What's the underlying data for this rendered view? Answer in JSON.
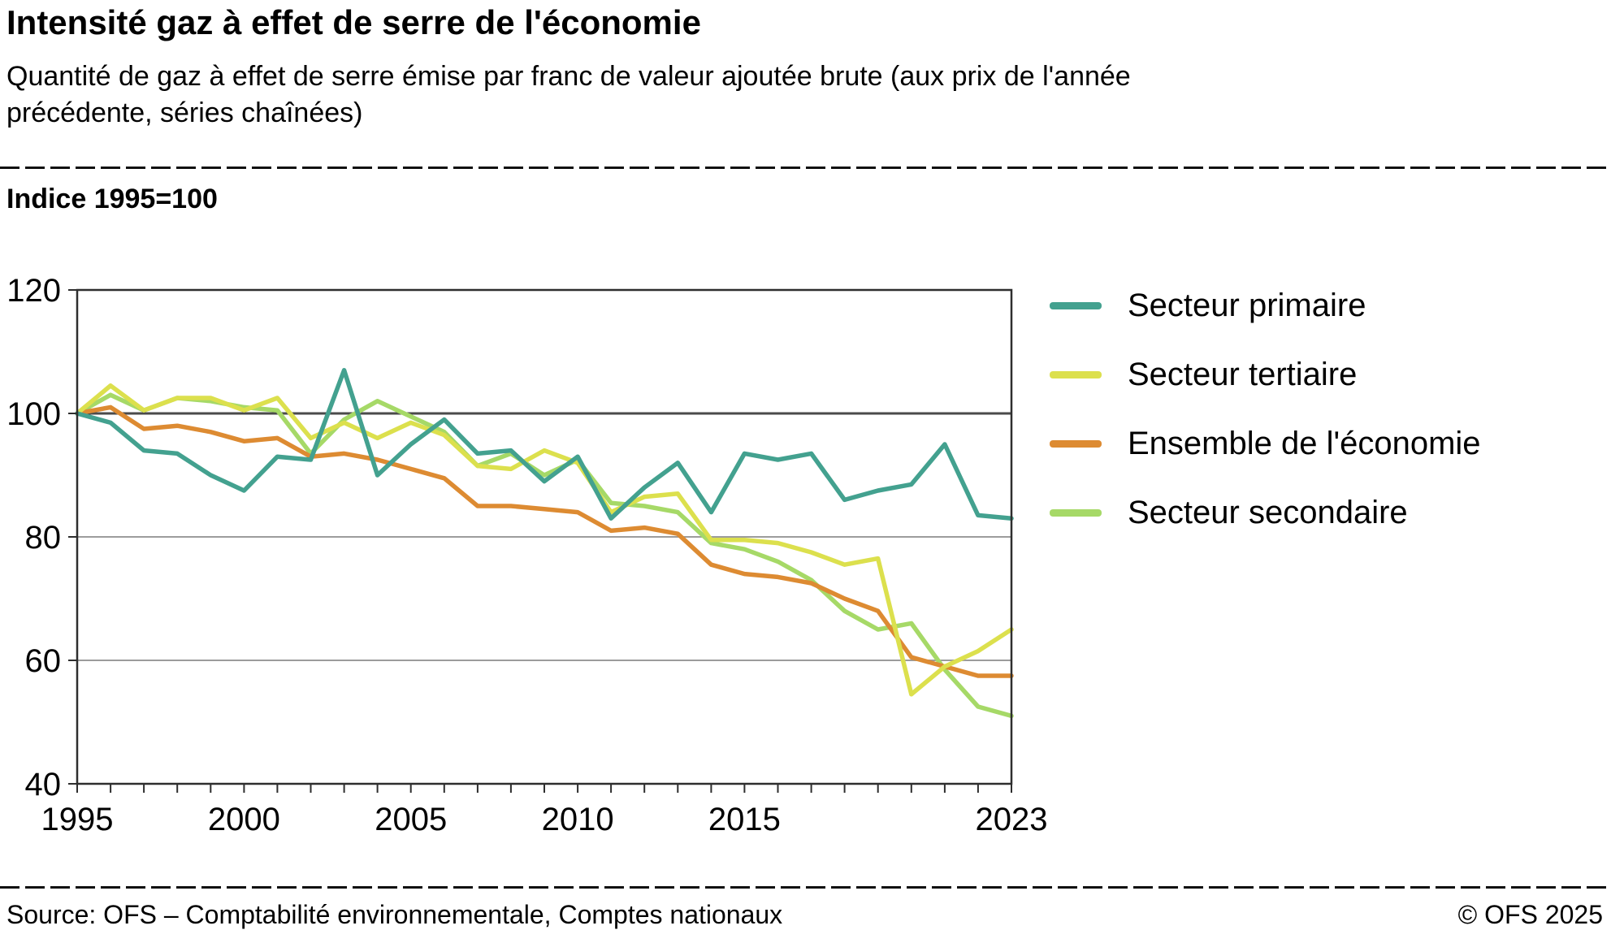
{
  "chart_data": {
    "type": "line",
    "title": "Intensité gaz à effet de serre de l'économie",
    "subtitle": "Quantité de gaz à effet de serre émise par franc de valeur ajoutée brute (aux prix de l'année précédente, séries chaînées)",
    "index_label": "Indice 1995=100",
    "x": [
      1995,
      1996,
      1997,
      1998,
      1999,
      2000,
      2001,
      2002,
      2003,
      2004,
      2005,
      2006,
      2007,
      2008,
      2009,
      2010,
      2011,
      2012,
      2013,
      2014,
      2015,
      2016,
      2017,
      2018,
      2019,
      2020,
      2021,
      2022,
      2023
    ],
    "xlim": [
      1995,
      2023
    ],
    "ylim": [
      40,
      120
    ],
    "y_ticks": [
      40,
      60,
      80,
      100,
      120
    ],
    "y_gridlines": [
      60,
      80,
      100
    ],
    "emphasized_gridline": 100,
    "x_tick_values": [
      1995,
      2000,
      2005,
      2010,
      2015,
      2023
    ],
    "x_tick_labels": [
      "1995",
      "2000",
      "2005",
      "2010",
      "2015",
      "2023"
    ],
    "grid": true,
    "legend_position": "right",
    "grid_color": "#9c9c9c",
    "emphasized_grid_color": "#4a4a4a",
    "axis_color": "#2e2e2e",
    "series": [
      {
        "name": "Secteur primaire",
        "color": "#43a18f",
        "values": [
          100,
          98.5,
          94,
          93.5,
          90,
          87.5,
          93,
          92.5,
          107,
          90,
          95,
          99,
          93.5,
          94,
          89,
          93,
          83,
          88,
          92,
          84,
          93.5,
          92.5,
          93.5,
          86,
          87.5,
          88.5,
          95,
          83.5,
          83
        ]
      },
      {
        "name": "Secteur tertiaire",
        "color": "#dce04d",
        "values": [
          100,
          104.5,
          100.5,
          102.5,
          102.5,
          100.5,
          102.5,
          96,
          98.5,
          96,
          98.5,
          96.5,
          91.5,
          91,
          94,
          92,
          84,
          86.5,
          87,
          79.5,
          79.5,
          79,
          77.5,
          75.5,
          76.5,
          54.5,
          59,
          61.5,
          65
        ]
      },
      {
        "name": "Ensemble de l'économie",
        "color": "#dd8b32",
        "values": [
          100,
          101,
          97.5,
          98,
          97,
          95.5,
          96,
          93,
          93.5,
          92.5,
          91,
          89.5,
          85,
          85,
          84.5,
          84,
          81,
          81.5,
          80.5,
          75.5,
          74,
          73.5,
          72.5,
          70,
          68,
          60.5,
          59,
          57.5,
          57.5
        ]
      },
      {
        "name": "Secteur secondaire",
        "color": "#a6d967",
        "values": [
          100,
          103,
          100.5,
          102.5,
          102,
          101,
          100.5,
          93.5,
          99,
          102,
          99.5,
          97,
          91.5,
          93.5,
          90,
          92.5,
          85.5,
          85,
          84,
          79,
          78,
          76,
          73,
          68,
          65,
          66,
          58.5,
          52.5,
          51
        ]
      }
    ]
  },
  "footer": {
    "source": "Source: OFS – Comptabilité environnementale, Comptes nationaux",
    "copyright": "© OFS 2025"
  }
}
